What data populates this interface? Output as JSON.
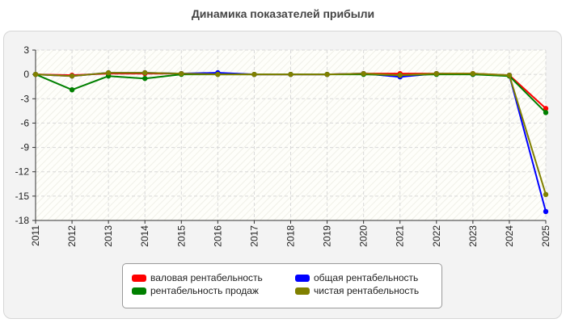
{
  "chart_data": {
    "type": "line",
    "title": "Динамика показателей прибыли",
    "xlabel": "",
    "ylabel": "",
    "x": [
      "2011",
      "2012",
      "2013",
      "2014",
      "2015",
      "2016",
      "2017",
      "2018",
      "2019",
      "2020",
      "2021",
      "2022",
      "2023",
      "2024",
      "2025"
    ],
    "ylim": [
      -18,
      3
    ],
    "yticks": [
      3,
      0,
      -3,
      -6,
      -9,
      -12,
      -15,
      -18
    ],
    "grid": true,
    "legend_position": "bottom",
    "series": [
      {
        "name": "валовая рентабельность",
        "color": "#ff0000",
        "values": [
          0,
          -0.1,
          0.1,
          0.1,
          0.1,
          0.1,
          0,
          0,
          0,
          0.1,
          0.1,
          0.1,
          0.1,
          -0.1,
          -4.2
        ]
      },
      {
        "name": "общая рентабельность",
        "color": "#0000ff",
        "values": [
          0,
          -0.2,
          0.2,
          0.2,
          0.1,
          0.2,
          0,
          0,
          0,
          0.1,
          -0.3,
          0.1,
          0,
          -0.1,
          -16.9
        ]
      },
      {
        "name": "рентабельность продаж",
        "color": "#008000",
        "values": [
          0,
          -1.9,
          -0.2,
          -0.5,
          0,
          0,
          0,
          0,
          0,
          0,
          -0.1,
          0,
          0,
          -0.2,
          -4.7
        ]
      },
      {
        "name": "чистая рентабельность",
        "color": "#808000",
        "values": [
          0,
          -0.2,
          0.2,
          0.2,
          0.1,
          0,
          0,
          0,
          0,
          0.1,
          -0.1,
          0.1,
          0.1,
          -0.1,
          -14.8
        ]
      }
    ]
  }
}
